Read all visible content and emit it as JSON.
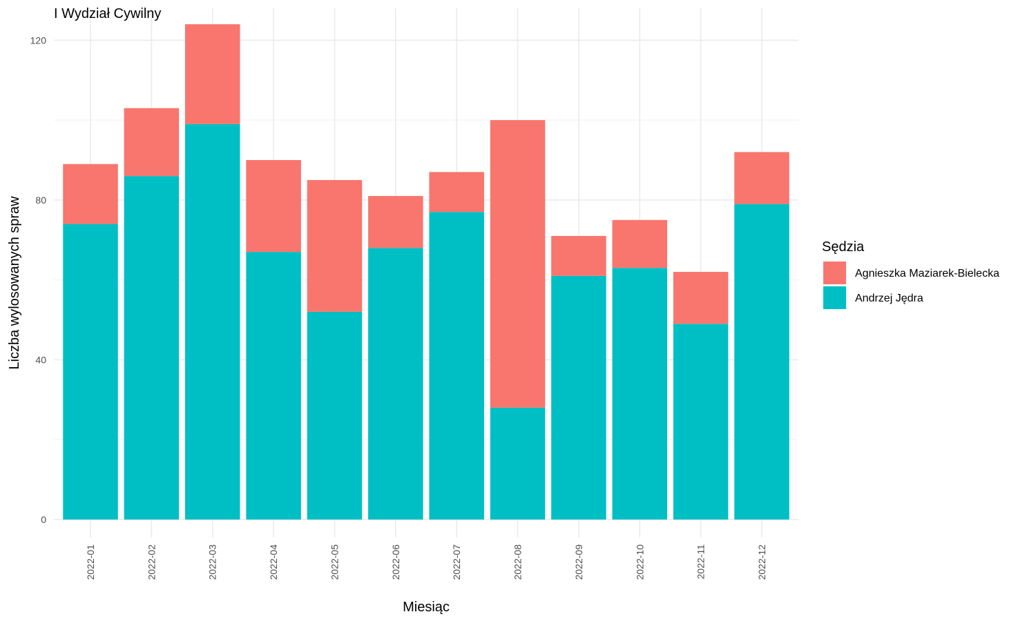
{
  "chart_data": {
    "type": "bar",
    "stacked": true,
    "title": "I Wydział Cywilny",
    "xlabel": "Miesiąc",
    "ylabel": "Liczba wylosowanych spraw",
    "categories": [
      "2022-01",
      "2022-02",
      "2022-03",
      "2022-04",
      "2022-05",
      "2022-06",
      "2022-07",
      "2022-08",
      "2022-09",
      "2022-10",
      "2022-11",
      "2022-12"
    ],
    "series": [
      {
        "name": "Andrzej Jędra",
        "color": "#00BFC4",
        "values": [
          74,
          86,
          99,
          67,
          52,
          68,
          77,
          28,
          61,
          63,
          49,
          79
        ]
      },
      {
        "name": "Agnieszka Maziarek-Bielecka",
        "color": "#F8766D",
        "values": [
          15,
          17,
          25,
          23,
          33,
          13,
          10,
          72,
          10,
          12,
          13,
          13
        ]
      }
    ],
    "ylim": [
      -4.5,
      128
    ],
    "yticks": [
      0,
      40,
      80,
      120
    ],
    "grid": true,
    "legend": {
      "title": "Sędzia",
      "placement": "right",
      "order": [
        "Agnieszka Maziarek-Bielecka",
        "Andrzej Jędra"
      ]
    }
  }
}
